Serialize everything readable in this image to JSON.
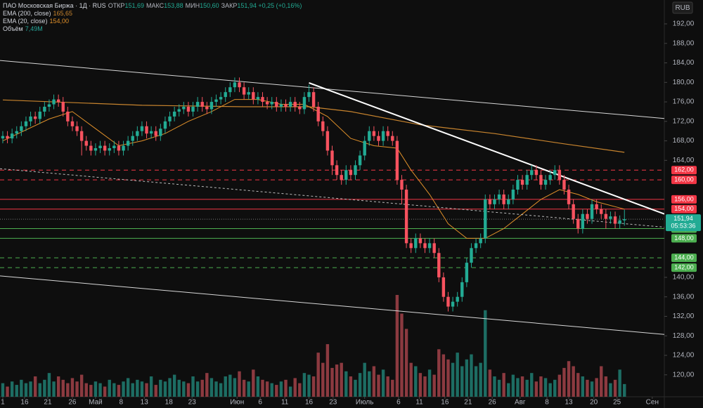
{
  "chart_data": {
    "type": "candlestick",
    "header": {
      "title": "ПАО Московская Биржа · 1Д · RUS",
      "ohlc": [
        {
          "label": "ОТКР",
          "value": "151,69"
        },
        {
          "label": "МАКС",
          "value": "153,88"
        },
        {
          "label": "МИН",
          "value": "150,60"
        },
        {
          "label": "ЗАКР",
          "value": "151,94"
        }
      ],
      "change": "+0,25 (+0,16%)"
    },
    "indicators": [
      {
        "name": "EMA (200, close)",
        "value": "165,65",
        "color": "#c8842e"
      },
      {
        "name": "EMA (20, close)",
        "value": "154,00",
        "color": "#e0902a"
      },
      {
        "name": "Объём",
        "value": "7,49M",
        "color": "#26a69a"
      }
    ],
    "currency": "RUB",
    "up_color": "#22ab94",
    "down_color": "#f7525f",
    "volume_up_color": "#1d6d63",
    "volume_down_color": "#8c3a40",
    "xlim": [
      -0.6,
      142.6
    ],
    "ylim": [
      115.5,
      196.9
    ],
    "vlim": [
      0,
      60
    ],
    "yticks": [
      {
        "value": 192,
        "label": "192,00"
      },
      {
        "value": 188,
        "label": "188,00"
      },
      {
        "value": 184,
        "label": "184,00"
      },
      {
        "value": 180,
        "label": "180,00"
      },
      {
        "value": 176,
        "label": "176,00"
      },
      {
        "value": 172,
        "label": "172,00"
      },
      {
        "value": 168,
        "label": "168,00"
      },
      {
        "value": 164,
        "label": "164,00"
      },
      {
        "value": 140,
        "label": "140,00"
      },
      {
        "value": 136,
        "label": "136,00"
      },
      {
        "value": 132,
        "label": "132,00"
      },
      {
        "value": 128,
        "label": "128,00"
      },
      {
        "value": 124,
        "label": "124,00"
      },
      {
        "value": 120,
        "label": "120,00"
      }
    ],
    "xticks": [
      {
        "value": 0,
        "label": "1"
      },
      {
        "value": 4.7,
        "label": "16"
      },
      {
        "value": 9.7,
        "label": "21"
      },
      {
        "value": 15,
        "label": "26"
      },
      {
        "value": 20,
        "label": "Май"
      },
      {
        "value": 25.5,
        "label": "8"
      },
      {
        "value": 30.5,
        "label": "13"
      },
      {
        "value": 35.8,
        "label": "18"
      },
      {
        "value": 40.8,
        "label": "23"
      },
      {
        "value": 50.5,
        "label": "Июн"
      },
      {
        "value": 55.5,
        "label": "6"
      },
      {
        "value": 60.8,
        "label": "11"
      },
      {
        "value": 66,
        "label": "16"
      },
      {
        "value": 71.2,
        "label": "23"
      },
      {
        "value": 78,
        "label": "Июль"
      },
      {
        "value": 85.3,
        "label": "6"
      },
      {
        "value": 89.8,
        "label": "11"
      },
      {
        "value": 95.3,
        "label": "16"
      },
      {
        "value": 100.3,
        "label": "21"
      },
      {
        "value": 105.5,
        "label": "26"
      },
      {
        "value": 111.5,
        "label": "Авг"
      },
      {
        "value": 117.3,
        "label": "8"
      },
      {
        "value": 122,
        "label": "13"
      },
      {
        "value": 127.4,
        "label": "20"
      },
      {
        "value": 132.4,
        "label": "25"
      },
      {
        "value": 140,
        "label": "Сен"
      }
    ],
    "candles": {
      "open": [
        168.5,
        169,
        168.5,
        169.5,
        170,
        171,
        172,
        173,
        172.5,
        174,
        175,
        175.5,
        176.5,
        176,
        174,
        172,
        171,
        170,
        168,
        167,
        166,
        166.5,
        167,
        166,
        166.5,
        167,
        166,
        167,
        168,
        169,
        170,
        171,
        169.5,
        170,
        169,
        170.5,
        172,
        173,
        174,
        174.5,
        175,
        174,
        175,
        176,
        175,
        174.5,
        176,
        176.5,
        177,
        178,
        179,
        180,
        179,
        177.5,
        178,
        176.5,
        177,
        176,
        175.5,
        176,
        175,
        175.5,
        175,
        176,
        175,
        174.5,
        177,
        178,
        175,
        172,
        170,
        166,
        163,
        161,
        160,
        162,
        161,
        163,
        165,
        168,
        170,
        169,
        168,
        170,
        169,
        168,
        160,
        158,
        147,
        146,
        148,
        147,
        146,
        147,
        145,
        140,
        136,
        134,
        135,
        136,
        139,
        143,
        146,
        147,
        148,
        156,
        155,
        156,
        157,
        155,
        156,
        158,
        160,
        159,
        161,
        162,
        161,
        159,
        160,
        161,
        162,
        160,
        158,
        155,
        152,
        150,
        153,
        152,
        155,
        154,
        153,
        152,
        152.5,
        151,
        151.69
      ],
      "high": [
        170,
        170,
        170.5,
        171,
        172,
        173,
        174,
        174,
        175,
        176,
        176.5,
        177.5,
        177.5,
        177,
        175,
        173,
        172,
        171,
        169,
        168,
        167.5,
        168,
        168,
        167.5,
        168,
        168,
        168,
        169,
        170,
        171,
        172,
        172,
        171,
        171,
        171.5,
        173,
        174,
        175,
        175.5,
        176,
        176,
        176,
        177,
        177,
        176,
        177,
        177.5,
        178,
        179,
        180,
        181,
        181,
        180,
        179,
        179,
        178,
        178,
        177,
        177,
        177,
        176.5,
        176.5,
        177,
        177,
        176,
        178,
        179.5,
        179,
        176,
        173,
        171,
        167,
        164,
        162,
        163,
        163,
        164,
        166,
        169,
        171,
        171,
        170,
        171,
        171,
        170,
        169,
        161,
        159,
        148,
        149,
        149,
        148,
        148,
        148,
        146,
        141,
        137,
        136,
        137,
        140,
        144,
        147,
        148,
        149,
        157,
        157,
        157,
        158,
        158,
        157,
        159,
        161,
        161,
        162,
        163,
        163,
        162,
        161,
        162,
        163,
        163,
        161,
        159,
        156,
        153,
        154,
        154,
        156,
        156,
        155,
        154,
        153.5,
        153.5,
        152.7,
        153.88
      ],
      "low": [
        167.5,
        167.5,
        167.5,
        168.5,
        169,
        170,
        171,
        171.5,
        171.5,
        173,
        174,
        174.5,
        175,
        173,
        171,
        170,
        169,
        165,
        166,
        165,
        165,
        165.5,
        165,
        165,
        165.5,
        165,
        165,
        166,
        167,
        168,
        169,
        168.5,
        168.5,
        168,
        168,
        169.5,
        171,
        172,
        173,
        173.5,
        173,
        173,
        174,
        174,
        173.5,
        173.5,
        175,
        175.5,
        176,
        177,
        178,
        178,
        176.5,
        176.5,
        175.5,
        175.5,
        175,
        174.5,
        174.5,
        174,
        174,
        174,
        174,
        174,
        173.5,
        173.5,
        176,
        174,
        171,
        169,
        165,
        161,
        160,
        159,
        159,
        160,
        160,
        162,
        164,
        167,
        168,
        167,
        167,
        168,
        167,
        159,
        155,
        146,
        145,
        145,
        146,
        145,
        145,
        144,
        139,
        135,
        133,
        133,
        134,
        135,
        138,
        142,
        145,
        146,
        147,
        154,
        154,
        155,
        154,
        154,
        155,
        157,
        158,
        158,
        160,
        160,
        158,
        158,
        159,
        160,
        159,
        157,
        154,
        151,
        149,
        149,
        151,
        151,
        153,
        152,
        150,
        151,
        150,
        150,
        150.6
      ],
      "close": [
        169,
        168.5,
        169.5,
        170,
        171,
        172,
        173,
        172.5,
        174,
        175,
        175.5,
        176.5,
        176,
        174,
        172,
        171,
        170,
        168,
        167,
        166,
        166.5,
        167,
        166,
        166.5,
        167,
        166,
        167,
        168,
        169,
        170,
        171,
        169.5,
        170,
        169,
        170.5,
        172,
        173,
        174,
        174.5,
        175,
        174,
        175,
        176,
        175,
        174.5,
        176,
        176.5,
        177,
        178,
        179,
        180,
        179,
        177.5,
        178,
        176.5,
        177,
        176,
        175.5,
        176,
        175,
        175.5,
        175,
        176,
        175,
        174.5,
        177,
        178,
        175,
        172,
        170,
        166,
        163,
        161,
        160,
        162,
        161,
        163,
        165,
        168,
        170,
        169,
        168,
        170,
        169,
        168,
        160,
        158,
        147,
        146,
        148,
        147,
        146,
        147,
        145,
        140,
        136,
        134,
        135,
        136,
        139,
        143,
        146,
        147,
        148,
        156,
        155,
        156,
        157,
        155,
        156,
        158,
        160,
        159,
        161,
        162,
        161,
        159,
        160,
        161,
        162,
        160,
        158,
        155,
        152,
        150,
        153,
        152,
        155,
        154,
        153,
        152,
        152.5,
        151,
        151.69,
        151.94
      ],
      "volume": [
        8,
        6,
        9,
        7,
        10,
        8,
        9,
        12,
        8,
        10,
        14,
        9,
        12,
        10,
        8,
        11,
        9,
        13,
        8,
        7,
        9,
        8,
        6,
        10,
        8,
        7,
        9,
        11,
        8,
        10,
        9,
        8,
        12,
        7,
        10,
        9,
        11,
        13,
        10,
        9,
        8,
        12,
        9,
        10,
        14,
        11,
        9,
        8,
        12,
        13,
        11,
        15,
        10,
        9,
        16,
        12,
        10,
        9,
        8,
        7,
        9,
        10,
        6,
        11,
        8,
        14,
        13,
        12,
        26,
        20,
        31,
        17,
        19,
        20,
        15,
        12,
        10,
        14,
        20,
        15,
        18,
        13,
        16,
        12,
        10,
        60,
        49,
        40,
        20,
        18,
        14,
        12,
        16,
        13,
        28,
        25,
        22,
        20,
        26,
        18,
        22,
        25,
        18,
        20,
        51,
        16,
        12,
        10,
        14,
        8,
        13,
        11,
        12,
        10,
        14,
        9,
        12,
        11,
        8,
        10,
        13,
        17,
        21,
        18,
        14,
        12,
        10,
        9,
        11,
        18,
        12,
        8,
        10,
        16,
        7.49
      ]
    },
    "lines": [
      {
        "x": [
          0,
          30,
          52,
          66,
          75,
          90,
          106,
          121,
          134
        ],
        "values": [
          176.4,
          175.3,
          175,
          175,
          174,
          171.3,
          169.5,
          167.4,
          165.65
        ],
        "color": "#c8842e",
        "width": 1.2
      },
      {
        "x": [
          0,
          10,
          15,
          20,
          25,
          30,
          35,
          40,
          45,
          50,
          55,
          60,
          65,
          70,
          75,
          80,
          85,
          88,
          92,
          96,
          100,
          104,
          108,
          112,
          116,
          120,
          124,
          128,
          134
        ],
        "values": [
          168,
          172.5,
          174,
          170.5,
          167,
          168,
          169.5,
          172,
          174,
          176.5,
          176.5,
          175.5,
          175.5,
          173,
          168.5,
          167,
          166.5,
          162,
          157,
          151,
          148,
          148,
          150,
          153,
          156,
          158,
          157,
          155.5,
          154
        ],
        "color": "#e0902a",
        "width": 1
      },
      {
        "x": [
          -0.6,
          142.6
        ],
        "values": [
          184.5,
          172.6
        ],
        "color": "#d8d8d8",
        "width": 1
      },
      {
        "x": [
          -0.6,
          142.6
        ],
        "values": [
          140.3,
          128.3
        ],
        "color": "#d8d8d8",
        "width": 1
      },
      {
        "x": [
          -0.6,
          142.6
        ],
        "values": [
          162.3,
          150.3
        ],
        "color": "#bbbbbb",
        "width": 1,
        "dash": "3 3"
      },
      {
        "x": [
          66,
          142.6
        ],
        "values": [
          179.9,
          153
        ],
        "color": "#ffffff",
        "width": 2
      }
    ],
    "levels": [
      {
        "value": 162,
        "label": "162,00",
        "color": "#f23645",
        "dash": "6 5"
      },
      {
        "value": 160,
        "label": "160,00",
        "color": "#f23645",
        "dash": "6 5"
      },
      {
        "value": 156,
        "label": "156,00",
        "color": "#f23645"
      },
      {
        "value": 154,
        "label": "154,00",
        "color": "#f23645"
      },
      {
        "value": 150,
        "label": "150,00",
        "color": "#4caf50"
      },
      {
        "value": 148,
        "label": "148,00",
        "color": "#4caf50"
      },
      {
        "value": 144,
        "label": "144,00",
        "color": "#4caf50",
        "dash": "6 5"
      },
      {
        "value": 142,
        "label": "142,00",
        "color": "#4caf50",
        "dash": "6 5"
      }
    ],
    "last_price": {
      "value": 151.94,
      "label": "151,94",
      "timer": "05:53:36",
      "color": "#22ab94"
    }
  }
}
